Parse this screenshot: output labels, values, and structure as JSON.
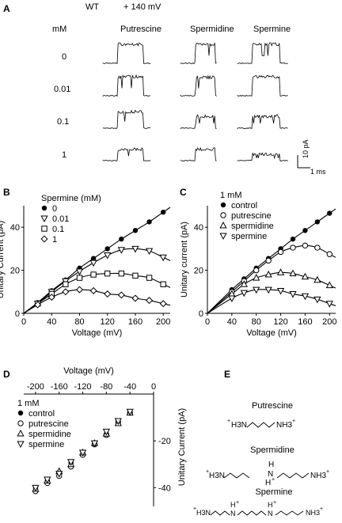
{
  "panel_A": {
    "letter": "A",
    "genotype": "WT",
    "voltage": "+ 140 mV",
    "conc_header": "mM",
    "concentrations": [
      "0",
      "0.01",
      "0.1",
      "1"
    ],
    "columns": [
      "Putrescine",
      "Spermidine",
      "Spermine"
    ],
    "scale_current": "10 pA",
    "scale_time": "1 ms",
    "trace_levels_pA": [
      [
        30,
        30,
        30
      ],
      [
        30,
        29,
        30
      ],
      [
        26,
        19,
        19
      ],
      [
        18,
        18,
        10
      ]
    ]
  },
  "chart_data": [
    {
      "panel": "B",
      "type": "scatter",
      "xlabel": "Voltage (mV)",
      "ylabel": "Unitary Current (pA)",
      "xlim": [
        0,
        210
      ],
      "ylim": [
        0,
        50
      ],
      "xticks": [
        "0",
        "40",
        "80",
        "120",
        "160",
        "200"
      ],
      "yticks": [
        "0",
        "20",
        "40"
      ],
      "legend_title": "Spermine (mM)",
      "legend_position": "top-left",
      "x": [
        20,
        40,
        60,
        80,
        100,
        120,
        140,
        160,
        180,
        200
      ],
      "series": [
        {
          "name": "0",
          "marker": "circle-filled",
          "values": [
            5,
            10.5,
            15.5,
            21,
            25.5,
            30,
            34.5,
            38.5,
            42.5,
            47
          ]
        },
        {
          "name": "0.01",
          "marker": "triangle-down",
          "values": [
            4.5,
            10,
            15,
            19.5,
            23.5,
            27,
            29.5,
            30,
            29,
            26
          ]
        },
        {
          "name": "0.1",
          "marker": "square",
          "values": [
            4.5,
            9,
            13.5,
            16.5,
            18,
            18.5,
            18.5,
            17.5,
            16.5,
            13.5
          ]
        },
        {
          "name": "1",
          "marker": "diamond",
          "values": [
            4,
            7.5,
            10,
            11,
            10.5,
            9,
            8.5,
            7,
            6,
            4.5
          ]
        }
      ]
    },
    {
      "panel": "C",
      "type": "scatter",
      "xlabel": "Voltage (mV)",
      "ylabel": "Unitary current (pA)",
      "xlim": [
        0,
        210
      ],
      "ylim": [
        0,
        50
      ],
      "xticks": [
        "0",
        "40",
        "80",
        "120",
        "160",
        "200"
      ],
      "yticks": [
        "0",
        "20",
        "40"
      ],
      "legend_title": "1 mM",
      "legend_position": "top-left",
      "x": [
        40,
        60,
        80,
        100,
        120,
        140,
        160,
        180,
        200
      ],
      "series": [
        {
          "name": "control",
          "marker": "circle-filled",
          "values": [
            11,
            16,
            21,
            25.5,
            30,
            34.5,
            38.5,
            42.5,
            46.5
          ]
        },
        {
          "name": "putrescine",
          "marker": "circle-open",
          "values": [
            10,
            15,
            20,
            24.5,
            28.5,
            30.5,
            31.5,
            30.5,
            27.5
          ]
        },
        {
          "name": "spermidine",
          "marker": "triangle-up",
          "values": [
            9,
            13.5,
            16.5,
            18,
            19,
            18.5,
            17,
            15.5,
            13
          ]
        },
        {
          "name": "spermine",
          "marker": "triangle-down",
          "values": [
            7,
            9.5,
            11,
            11,
            10.5,
            9,
            8,
            6.5,
            4.5
          ]
        }
      ]
    },
    {
      "panel": "D",
      "type": "scatter",
      "xlabel": "Voltage (mV)",
      "ylabel": "Unitary Current (pA)",
      "xlim": [
        -220,
        0
      ],
      "ylim": [
        -48,
        0
      ],
      "xticks": [
        "-200",
        "-160",
        "-120",
        "-80",
        "-40",
        "0"
      ],
      "yticks": [
        "-20",
        "-40"
      ],
      "legend_title": "1 mM",
      "legend_position": "top-left",
      "x": [
        -200,
        -180,
        -160,
        -140,
        -120,
        -100,
        -80,
        -60,
        -40
      ],
      "series": [
        {
          "name": "control",
          "marker": "circle-filled",
          "values": [
            -40,
            -37,
            -33.5,
            -29.5,
            -25.5,
            -21,
            -17,
            -12,
            -8
          ]
        },
        {
          "name": "putrescine",
          "marker": "circle-open",
          "values": [
            -41.5,
            -38,
            -35,
            -31,
            -26,
            -21.5,
            -17.5,
            -12,
            -8
          ]
        },
        {
          "name": "spermidine",
          "marker": "triangle-up",
          "values": [
            -40.5,
            -37,
            -33,
            -30,
            -25,
            -21,
            -17,
            -12.5,
            -8
          ]
        },
        {
          "name": "spermine",
          "marker": "triangle-down",
          "values": [
            -40,
            -36.5,
            -34,
            -29,
            -25,
            -21,
            -16,
            -11.5,
            -7.5
          ]
        }
      ]
    }
  ],
  "panel_letters": {
    "B": "B",
    "C": "C",
    "D": "D",
    "E": "E"
  },
  "panel_E": {
    "letter": "E",
    "molecules": [
      {
        "name": "Putrescine",
        "left": "+",
        "left_group": "H3N",
        "right_group": "NH3",
        "right": "+"
      },
      {
        "name": "Spermidine",
        "left": "+",
        "left_group": "H3N",
        "mid_top": "H",
        "mid_n": "N",
        "mid_h": "H",
        "mid_plus": "+",
        "right_group": "NH3",
        "right": "+"
      },
      {
        "name": "Spermine",
        "left": "+",
        "left_group": "H3N",
        "n1_h": "H",
        "n1_plus": "+",
        "n_label": "N",
        "n2_h": "H",
        "n2_plus": "+",
        "right_group": "NH3",
        "right": "+"
      }
    ]
  }
}
